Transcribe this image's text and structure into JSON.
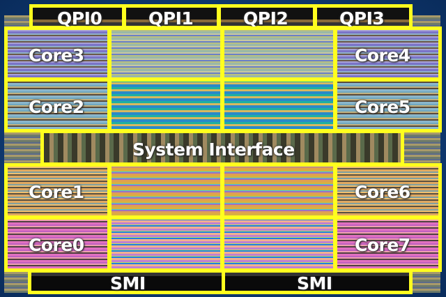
{
  "diagram": {
    "qpi": [
      "QPI0",
      "QPI1",
      "QPI2",
      "QPI3"
    ],
    "cores_left": [
      "Core3",
      "Core2",
      "Core1",
      "Core0"
    ],
    "cores_right": [
      "Core4",
      "Core5",
      "Core6",
      "Core7"
    ],
    "system_interface": "System Interface",
    "smi": [
      "SMI",
      "SMI"
    ],
    "colors": {
      "outline": "#ffff1e",
      "background": "#0f3a72",
      "label": "#ffffff"
    }
  }
}
